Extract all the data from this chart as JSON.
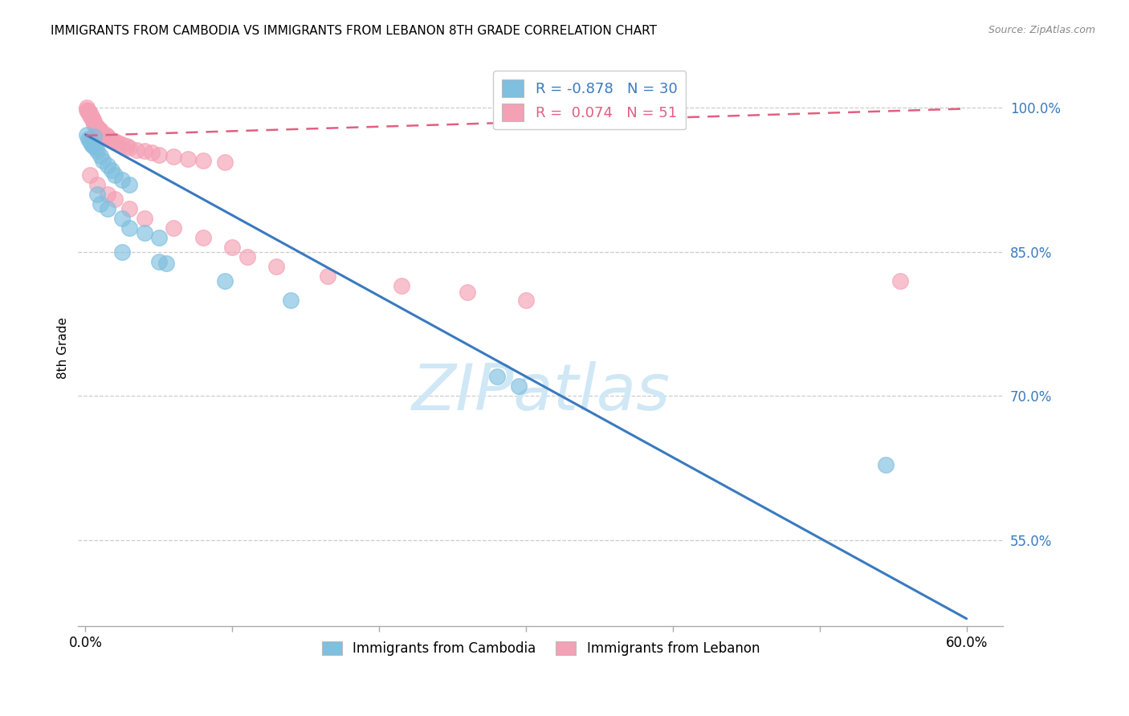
{
  "title": "IMMIGRANTS FROM CAMBODIA VS IMMIGRANTS FROM LEBANON 8TH GRADE CORRELATION CHART",
  "source": "Source: ZipAtlas.com",
  "xlabel_cambodia": "Immigrants from Cambodia",
  "xlabel_lebanon": "Immigrants from Lebanon",
  "ylabel": "8th Grade",
  "xlim_min": -0.005,
  "xlim_max": 0.625,
  "ylim_min": 0.46,
  "ylim_max": 1.04,
  "ytick_vals": [
    0.55,
    0.7,
    0.85,
    1.0
  ],
  "ytick_labels": [
    "55.0%",
    "70.0%",
    "85.0%",
    "100.0%"
  ],
  "xtick_vals": [
    0.0,
    0.1,
    0.2,
    0.3,
    0.4,
    0.5,
    0.6
  ],
  "xtick_labels": [
    "0.0%",
    "",
    "",
    "",
    "",
    "",
    "60.0%"
  ],
  "r_cambodia": -0.878,
  "n_cambodia": 30,
  "r_lebanon": 0.074,
  "n_lebanon": 51,
  "blue_scatter_color": "#7fbfdf",
  "pink_scatter_color": "#f4a0b5",
  "blue_line_color": "#3a7abf",
  "pink_line_color": "#e06080",
  "watermark_color": "#d0e8f5",
  "blue_line_x0": 0.0,
  "blue_line_y0": 0.972,
  "blue_line_x1": 0.6,
  "blue_line_y1": 0.468,
  "pink_line_x0": 0.0,
  "pink_line_y0": 0.971,
  "pink_line_x1": 0.6,
  "pink_line_y1": 0.999,
  "cambodia_x": [
    0.001,
    0.002,
    0.003,
    0.004,
    0.005,
    0.006,
    0.007,
    0.008,
    0.01,
    0.012,
    0.015,
    0.018,
    0.02,
    0.025,
    0.03,
    0.008,
    0.01,
    0.015,
    0.025,
    0.03,
    0.04,
    0.05,
    0.025,
    0.05,
    0.055,
    0.095,
    0.14,
    0.28,
    0.295,
    0.545
  ],
  "cambodia_y": [
    0.972,
    0.968,
    0.965,
    0.962,
    0.96,
    0.97,
    0.958,
    0.955,
    0.95,
    0.945,
    0.94,
    0.935,
    0.93,
    0.925,
    0.92,
    0.91,
    0.9,
    0.895,
    0.885,
    0.875,
    0.87,
    0.865,
    0.85,
    0.84,
    0.838,
    0.82,
    0.8,
    0.72,
    0.71,
    0.628
  ],
  "lebanon_x": [
    0.001,
    0.001,
    0.002,
    0.002,
    0.003,
    0.003,
    0.004,
    0.004,
    0.005,
    0.005,
    0.006,
    0.006,
    0.007,
    0.008,
    0.009,
    0.01,
    0.01,
    0.012,
    0.014,
    0.015,
    0.016,
    0.018,
    0.02,
    0.022,
    0.025,
    0.028,
    0.03,
    0.035,
    0.04,
    0.045,
    0.05,
    0.06,
    0.07,
    0.08,
    0.095,
    0.003,
    0.008,
    0.015,
    0.02,
    0.03,
    0.04,
    0.06,
    0.08,
    0.1,
    0.11,
    0.13,
    0.165,
    0.215,
    0.26,
    0.3,
    0.555
  ],
  "lebanon_y": [
    1.0,
    0.998,
    0.997,
    0.995,
    0.994,
    0.992,
    0.991,
    0.989,
    0.988,
    0.986,
    0.985,
    0.983,
    0.982,
    0.98,
    0.978,
    0.977,
    0.975,
    0.973,
    0.972,
    0.97,
    0.968,
    0.966,
    0.965,
    0.963,
    0.962,
    0.96,
    0.958,
    0.956,
    0.955,
    0.953,
    0.951,
    0.949,
    0.947,
    0.945,
    0.943,
    0.93,
    0.92,
    0.91,
    0.905,
    0.895,
    0.885,
    0.875,
    0.865,
    0.855,
    0.845,
    0.835,
    0.825,
    0.815,
    0.808,
    0.8,
    0.82
  ]
}
